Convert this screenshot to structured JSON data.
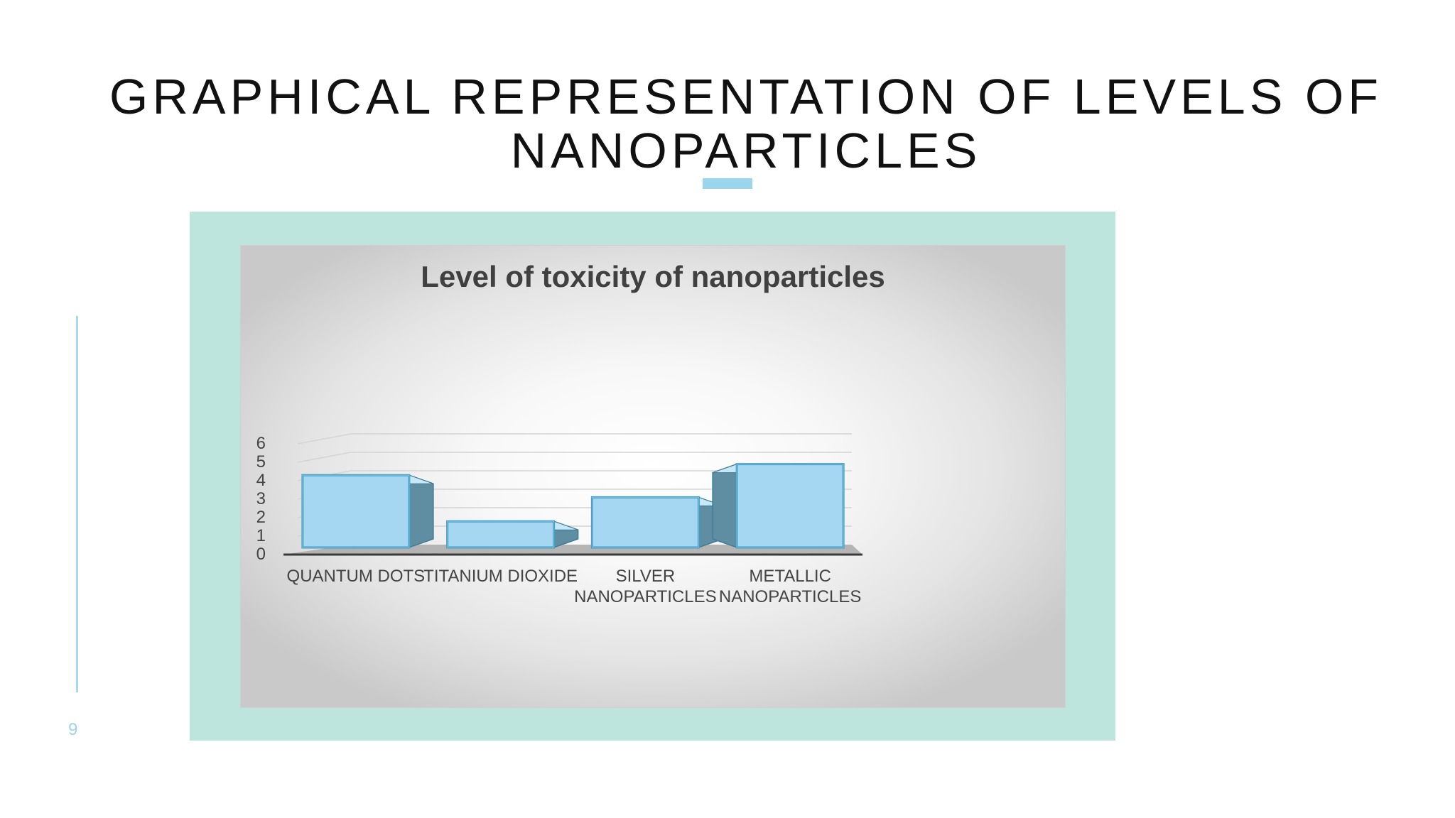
{
  "slide": {
    "title": "GRAPHICAL REPRESENTATION OF LEVELS OF NANOPARTICLES",
    "page_number": "9"
  },
  "colors": {
    "accent": "#99d5ec",
    "frame": "#bde5dd",
    "bar_front": "#a5d6f2",
    "bar_side": "#5f8ea3",
    "axis_text": "#444444"
  },
  "chart_data": {
    "type": "bar",
    "style": "3d-column",
    "title": "Level of toxicity of nanoparticles",
    "xlabel": "",
    "ylabel": "",
    "categories": [
      [
        "QUANTUM DOTS"
      ],
      [
        "TITANIUM DIOXIDE"
      ],
      [
        "SILVER",
        "NANOPARTICLES"
      ],
      [
        "METALLIC",
        "NANOPARTICLES"
      ]
    ],
    "values": [
      4.3,
      1.8,
      3.1,
      4.9
    ],
    "ylim": [
      0,
      6
    ],
    "yticks": [
      "0",
      "1",
      "2",
      "3",
      "4",
      "5",
      "6"
    ],
    "grid": true,
    "legend": "none"
  }
}
